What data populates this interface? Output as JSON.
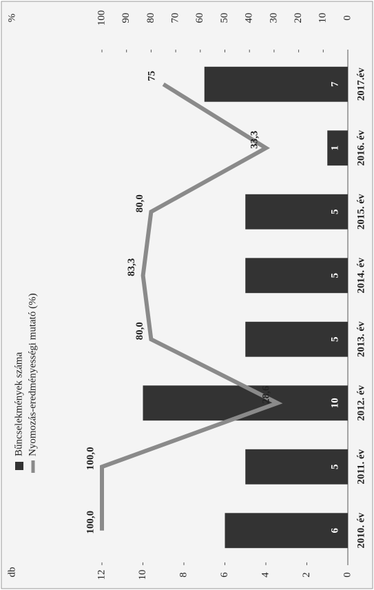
{
  "chart_data": {
    "type": "combo",
    "categories": [
      "2010. év",
      "2011. év",
      "2012. év",
      "2013. év",
      "2014. év",
      "2015. év",
      "2016. év",
      "2017.év"
    ],
    "series": [
      {
        "name": "Bűncselekmények száma",
        "color": "#333333",
        "values": [
          6,
          5,
          10,
          5,
          5,
          5,
          1,
          7
        ]
      },
      {
        "name": "Nyomozás-eredményességi mutató (%)",
        "color": "#8a8a8a",
        "axis": "y2",
        "values": [
          100,
          100,
          28.6,
          80,
          83.3,
          80,
          33.3,
          75
        ],
        "value_labels": [
          "100,0",
          "100,0",
          "28,6",
          "80,0",
          "83,3",
          "80,0",
          "33,3",
          "75"
        ]
      }
    ],
    "y_label": "db",
    "ylim": [
      0,
      12
    ],
    "yticks": [
      0,
      2,
      4,
      6,
      8,
      10,
      12
    ],
    "y2_label": "%",
    "y2lim": [
      0,
      100
    ],
    "y2ticks": [
      0,
      10,
      20,
      30,
      40,
      50,
      60,
      70,
      80,
      90,
      100
    ]
  }
}
